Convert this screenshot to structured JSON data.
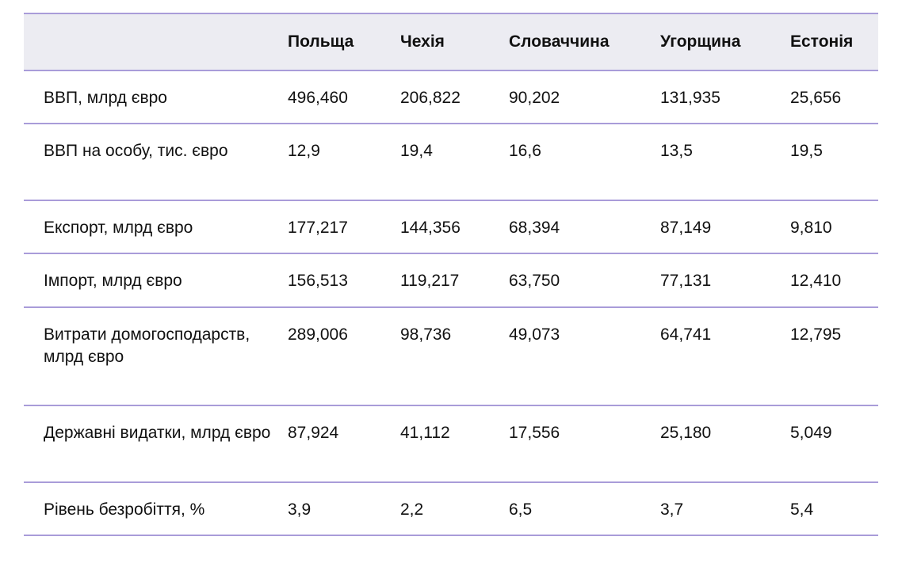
{
  "table": {
    "columns": [
      "",
      "Польща",
      "Чехія",
      "Словаччина",
      "Угорщина",
      "Естонія"
    ],
    "rows": [
      {
        "label": "ВВП, млрд євро",
        "values": [
          "496,460",
          "206,822",
          "90,202",
          "131,935",
          "25,656"
        ]
      },
      {
        "label": "ВВП на особу, тис. євро",
        "values": [
          "12,9",
          "19,4",
          "16,6",
          "13,5",
          "19,5"
        ]
      },
      {
        "label": "Експорт, млрд євро",
        "values": [
          "177,217",
          "144,356",
          "68,394",
          "87,149",
          "9,810"
        ]
      },
      {
        "label": "Імпорт, млрд євро",
        "values": [
          "156,513",
          "119,217",
          "63,750",
          "77,131",
          "12,410"
        ]
      },
      {
        "label": "Витрати домогосподарств, млрд євро",
        "values": [
          "289,006",
          "98,736",
          "49,073",
          "64,741",
          "12,795"
        ]
      },
      {
        "label": "Державні видатки, млрд євро",
        "values": [
          "87,924",
          "41,112",
          "17,556",
          "25,180",
          "5,049"
        ]
      },
      {
        "label": "Рівень безробіття, %",
        "values": [
          "3,9",
          "2,2",
          "6,5",
          "3,7",
          "5,4"
        ]
      }
    ]
  },
  "colors": {
    "header_bg": "#ececf2",
    "rule": "#a99cd9"
  }
}
